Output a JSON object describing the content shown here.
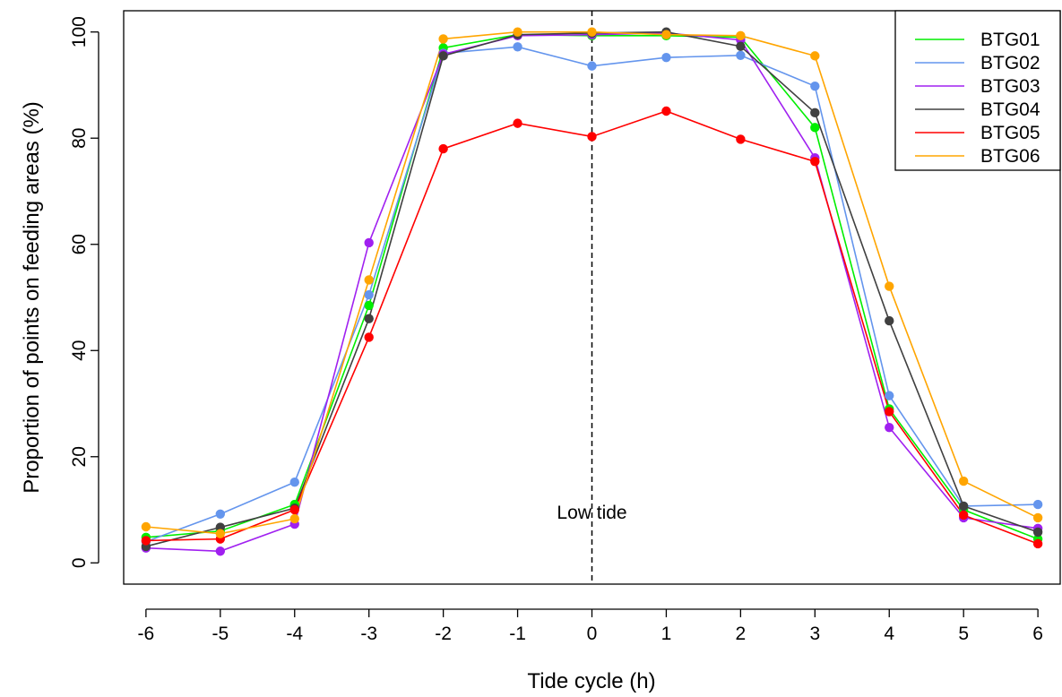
{
  "chart_data": {
    "type": "line",
    "title": "",
    "xlabel": "Tide cycle (h)",
    "ylabel": "Proportion of points on feeding areas (%)",
    "x": [
      -6,
      -5,
      -4,
      -3,
      -2,
      -1,
      0,
      1,
      2,
      3,
      4,
      5,
      6
    ],
    "x_tick_labels": [
      "-6",
      "-5",
      "-4",
      "-3",
      "-2",
      "-1",
      "0",
      "1",
      "2",
      "3",
      "4",
      "5",
      "6"
    ],
    "y_ticks": [
      0,
      20,
      40,
      60,
      80,
      100
    ],
    "y_tick_labels": [
      "0",
      "20",
      "40",
      "60",
      "80",
      "100"
    ],
    "xlim": [
      -6.3,
      6.3
    ],
    "ylim": [
      -4,
      104
    ],
    "grid": false,
    "legend_position": "top-right",
    "annotations": [
      {
        "text": "Low tide",
        "x": 0,
        "y": 9.5
      }
    ],
    "vline": {
      "x": 0,
      "style": "dashed"
    },
    "series": [
      {
        "name": "BTG01",
        "color": "#00ee00",
        "values": [
          4.8,
          6.0,
          11.0,
          48.5,
          97.0,
          99.5,
          99.3,
          99.3,
          99.0,
          82.0,
          29.0,
          10.0,
          4.5
        ]
      },
      {
        "name": "BTG02",
        "color": "#6495ed",
        "values": [
          4.0,
          9.2,
          15.2,
          50.5,
          96.0,
          97.2,
          93.6,
          95.2,
          95.6,
          89.8,
          31.5,
          10.7,
          11.0
        ]
      },
      {
        "name": "BTG03",
        "color": "#a020f0",
        "values": [
          2.8,
          2.2,
          7.3,
          60.3,
          95.8,
          99.3,
          99.5,
          99.8,
          98.5,
          76.3,
          25.5,
          8.5,
          6.5
        ]
      },
      {
        "name": "BTG04",
        "color": "#404040",
        "values": [
          3.1,
          6.7,
          10.3,
          46.0,
          95.5,
          99.5,
          99.8,
          100.0,
          97.3,
          84.8,
          45.6,
          10.7,
          5.8
        ]
      },
      {
        "name": "BTG05",
        "color": "#ff0000",
        "values": [
          4.2,
          4.5,
          10.0,
          42.5,
          78.0,
          82.8,
          80.3,
          85.1,
          79.8,
          75.6,
          28.5,
          9.0,
          3.6
        ]
      },
      {
        "name": "BTG06",
        "color": "#ffa500",
        "values": [
          6.8,
          5.5,
          8.3,
          53.3,
          98.7,
          100.0,
          100.0,
          99.5,
          99.3,
          95.5,
          52.1,
          15.4,
          8.5
        ]
      }
    ]
  }
}
